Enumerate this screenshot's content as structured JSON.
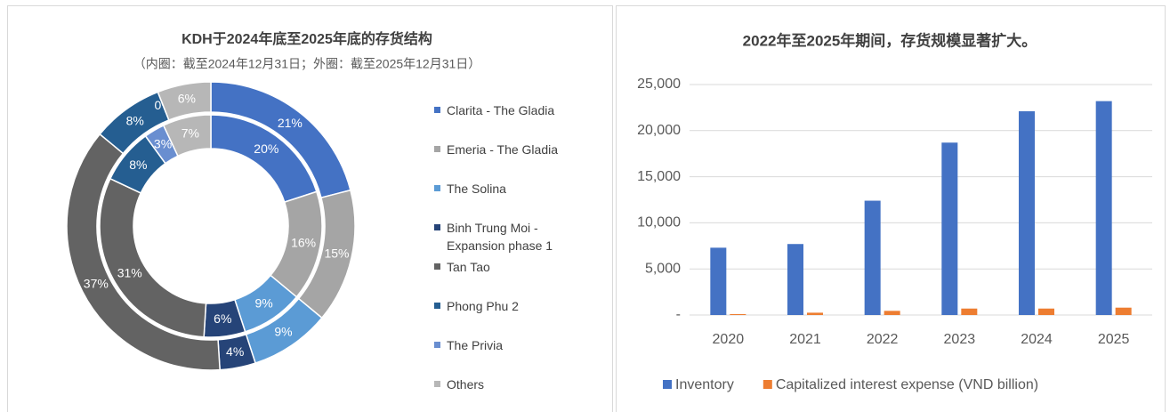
{
  "chart_data": [
    {
      "type": "donut",
      "title": "KDH于2024年底至2025年底的存货结构",
      "subtitle": "（内圈：截至2024年12月31日；外圈：截至2025年12月31日）",
      "categories": [
        "Clarita - The Gladia",
        "Emeria - The Gladia",
        "The Solina",
        "Binh Trung Moi - Expansion phase 1",
        "Tan Tao",
        "Phong Phu 2",
        "The Privia",
        "Others"
      ],
      "colors": [
        "#4472c4",
        "#a5a5a5",
        "#5b9bd5",
        "#264478",
        "#636363",
        "#255e91",
        "#698ed0",
        "#b7b7b7"
      ],
      "series": [
        {
          "values": [
            20,
            16,
            9,
            6,
            31,
            8,
            3,
            7
          ],
          "value_labels": [
            "20%",
            "16%",
            "9%",
            "6%",
            "31%",
            "8%",
            "3%",
            "7%"
          ]
        },
        {
          "values": [
            21,
            15,
            9,
            4,
            37,
            8,
            0,
            6
          ],
          "value_labels": [
            "21%",
            "15%",
            "9%",
            "4%",
            "37%",
            "8%",
            "0%",
            "6%"
          ]
        }
      ],
      "legend": "right"
    },
    {
      "type": "bar",
      "title": "2022年至2025年期间，存货规模显著扩大。",
      "categories": [
        "2020",
        "2021",
        "2022",
        "2023",
        "2024",
        "2025"
      ],
      "series": [
        {
          "name": "Inventory",
          "color": "#4472c4",
          "values": [
            7300,
            7700,
            12400,
            18700,
            22100,
            23200
          ]
        },
        {
          "name": "Capitalized interest expense (VND billion)",
          "color": "#ed7d31",
          "values": [
            100,
            250,
            450,
            700,
            700,
            800
          ]
        }
      ],
      "ylim": [
        0,
        25000
      ],
      "yticks": [
        {
          "value": 0,
          "label": "-"
        },
        {
          "value": 5000,
          "label": "5,000"
        },
        {
          "value": 10000,
          "label": "10,000"
        },
        {
          "value": 15000,
          "label": "15,000"
        },
        {
          "value": 20000,
          "label": "20,000"
        },
        {
          "value": 25000,
          "label": "25,000"
        }
      ],
      "grid": true,
      "legend": "bottom"
    }
  ]
}
